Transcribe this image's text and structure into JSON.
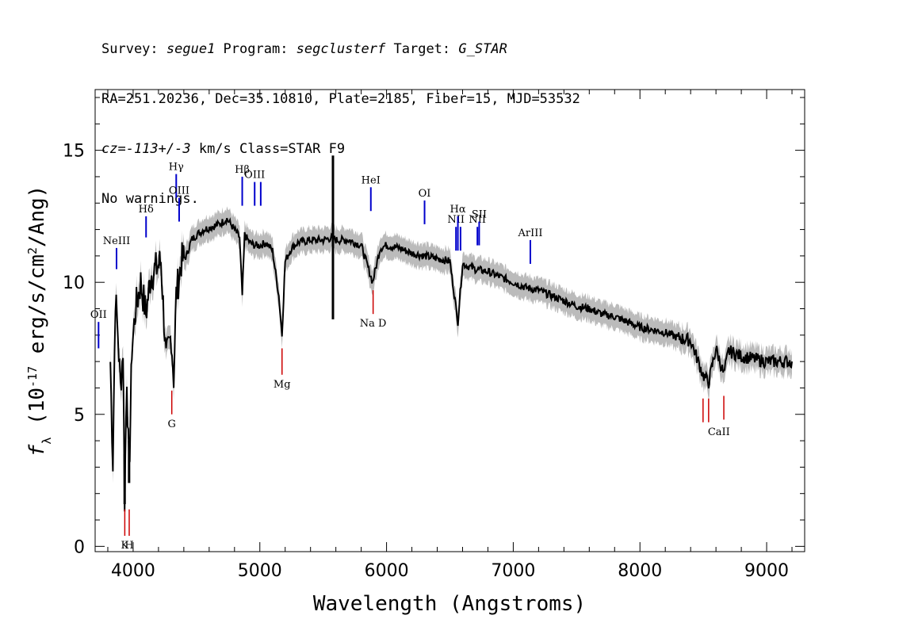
{
  "header": {
    "line1": {
      "survey_label": "Survey: ",
      "survey": "segue1",
      "program_label": " Program: ",
      "program": "segclusterf",
      "target_label": " Target: ",
      "target": "G_STAR"
    },
    "line2": "RA=251.20236, Dec=35.10810, Plate=2185, Fiber=15, MJD=53532",
    "line3": {
      "cz": "cz=-113+/-3",
      "rest": " km/s Class=STAR F9"
    },
    "line4": "No warnings."
  },
  "colors": {
    "flux": "#000000",
    "error": "#bbbbbb",
    "emission": "#0000cc",
    "absorption": "#cc0000"
  },
  "chart_data": {
    "type": "line",
    "xlabel": "Wavelength (Angstroms)",
    "ylabel": "f_λ (10^-17 erg/s/cm^2/Ang)",
    "xlim": [
      3700,
      9300
    ],
    "ylim": [
      -0.2,
      17.3
    ],
    "x_ticks": [
      4000,
      5000,
      6000,
      7000,
      8000,
      9000
    ],
    "y_ticks": [
      0,
      5,
      10,
      15
    ],
    "series": [
      {
        "x": [
          3820,
          3840,
          3860,
          3880,
          3900,
          3920,
          3933,
          3950,
          3968,
          3990,
          4020,
          4060,
          4101,
          4140,
          4180,
          4220,
          4260,
          4300,
          4320,
          4340,
          4380,
          4420,
          4460,
          4500,
          4560,
          4620,
          4680,
          4740,
          4800,
          4840,
          4861,
          4880,
          4920,
          4960,
          5000,
          5050,
          5100,
          5150,
          5175,
          5200,
          5250,
          5300,
          5400,
          5500,
          5577,
          5600,
          5700,
          5800,
          5890,
          5950,
          6000,
          6100,
          6200,
          6300,
          6400,
          6500,
          6563,
          6600,
          6700,
          6800,
          6900,
          7000,
          7100,
          7200,
          7300,
          7400,
          7500,
          7600,
          7700,
          7800,
          7900,
          8000,
          8100,
          8200,
          8300,
          8400,
          8498,
          8542,
          8600,
          8662,
          8700,
          8800,
          8900,
          9000,
          9100,
          9200
        ],
        "values": [
          7.0,
          3.2,
          9.5,
          8.0,
          6.0,
          7.5,
          1.8,
          6.5,
          2.5,
          7.5,
          9.0,
          10.0,
          8.8,
          10.3,
          10.5,
          10.8,
          7.0,
          8.0,
          6.4,
          9.5,
          10.8,
          11.0,
          11.6,
          11.8,
          12.0,
          12.1,
          12.2,
          12.4,
          12.0,
          11.7,
          9.5,
          11.8,
          11.5,
          11.4,
          11.4,
          11.5,
          11.2,
          9.5,
          8.0,
          10.8,
          11.3,
          11.5,
          11.6,
          11.6,
          11.7,
          11.6,
          11.6,
          11.4,
          10.0,
          11.3,
          11.4,
          11.3,
          11.1,
          11.0,
          10.9,
          10.8,
          8.5,
          10.7,
          10.5,
          10.4,
          10.2,
          10.0,
          9.8,
          9.7,
          9.5,
          9.3,
          9.1,
          9.0,
          8.8,
          8.7,
          8.5,
          8.3,
          8.2,
          8.1,
          7.9,
          7.8,
          6.5,
          6.2,
          7.5,
          6.5,
          7.4,
          7.2,
          7.1,
          7.0,
          7.0,
          7.0
        ]
      }
    ],
    "spikes": [
      {
        "x": 5577,
        "top": 14.8,
        "bottom": 8.6
      },
      {
        "x": 3933,
        "top": 3.5,
        "bottom": 1.6
      },
      {
        "x": 3968,
        "top": 4.0,
        "bottom": 2.4
      }
    ],
    "emission_lines": [
      {
        "label": "OII",
        "x": 3727,
        "y0": 7.5,
        "y1": 8.5
      },
      {
        "label": "NeIII",
        "x": 3869,
        "y0": 10.5,
        "y1": 11.3
      },
      {
        "label": "Hδ",
        "x": 4102,
        "y0": 11.7,
        "y1": 12.5
      },
      {
        "label": "Hγ",
        "x": 4340,
        "y0": 13.2,
        "y1": 14.1
      },
      {
        "label": "OIII",
        "x": 4363,
        "y0": 12.3,
        "y1": 13.2
      },
      {
        "label": "Hβ",
        "x": 4861,
        "y0": 12.9,
        "y1": 14.0
      },
      {
        "label": "OIII",
        "x": 4959,
        "y0": 12.9,
        "y1": 13.8
      },
      {
        "label": "",
        "x": 5007,
        "y0": 12.9,
        "y1": 13.8
      },
      {
        "label": "HeI",
        "x": 5876,
        "y0": 12.7,
        "y1": 13.6
      },
      {
        "label": "OI",
        "x": 6300,
        "y0": 12.2,
        "y1": 13.1
      },
      {
        "label": "NII",
        "x": 6548,
        "y0": 11.2,
        "y1": 12.1
      },
      {
        "label": "Hα",
        "x": 6563,
        "y0": 11.2,
        "y1": 12.5
      },
      {
        "label": "",
        "x": 6584,
        "y0": 11.2,
        "y1": 12.1
      },
      {
        "label": "NII",
        "x": 6717,
        "y0": 11.4,
        "y1": 12.1
      },
      {
        "label": "SII",
        "x": 6731,
        "y0": 11.4,
        "y1": 12.3
      },
      {
        "label": "ArIII",
        "x": 7135,
        "y0": 10.7,
        "y1": 11.6
      }
    ],
    "absorption_lines": [
      {
        "label": "K",
        "x": 3934,
        "y0": 0.4,
        "y1": 1.4
      },
      {
        "label": "H",
        "x": 3969,
        "y0": 0.4,
        "y1": 1.4
      },
      {
        "label": "G",
        "x": 4305,
        "y0": 5.0,
        "y1": 5.9
      },
      {
        "label": "Mg",
        "x": 5175,
        "y0": 6.5,
        "y1": 7.5
      },
      {
        "label": "Na D",
        "x": 5894,
        "y0": 8.8,
        "y1": 9.7
      },
      {
        "label": "CaII",
        "x": 8498,
        "y0": 4.7,
        "y1": 5.6
      },
      {
        "label": "",
        "x": 8542,
        "y0": 4.7,
        "y1": 5.6
      },
      {
        "label": "",
        "x": 8662,
        "y0": 4.8,
        "y1": 5.7
      }
    ]
  }
}
